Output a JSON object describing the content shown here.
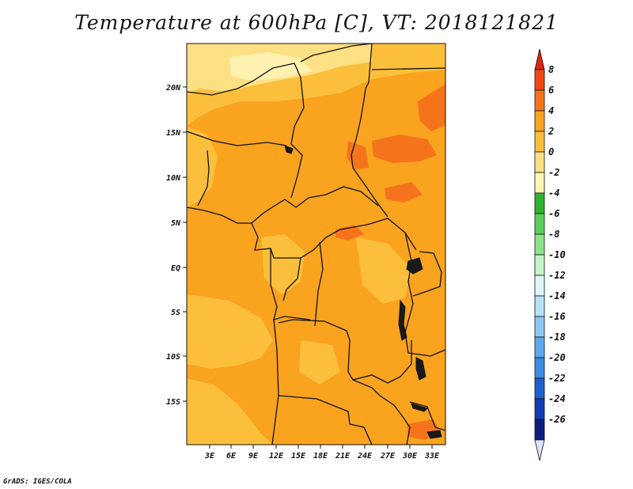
{
  "title": "Temperature at 600hPa [C], VT: 2018121821",
  "footer": "GrADS: IGES/COLA",
  "map": {
    "region": "Central Africa",
    "lat_labels": [
      "20N",
      "15N",
      "10N",
      "5N",
      "EQ",
      "5S",
      "10S",
      "15S"
    ],
    "lon_labels": [
      "3E",
      "6E",
      "9E",
      "12E",
      "15E",
      "18E",
      "21E",
      "24E",
      "27E",
      "30E",
      "33E"
    ],
    "dominant_field": "2 to 4",
    "features": [
      "country borders",
      "coastline",
      "lakes"
    ]
  },
  "colorbar": {
    "labels": [
      "8",
      "6",
      "4",
      "2",
      "0",
      "-2",
      "-4",
      "-6",
      "-8",
      "-10",
      "-12",
      "-14",
      "-16",
      "-18",
      "-20",
      "-22",
      "-24",
      "-26"
    ],
    "colors": [
      "#e02410",
      "#f04a12",
      "#f5741b",
      "#f9a31f",
      "#fbbf3c",
      "#fde083",
      "#fff6b3",
      "#2eb22e",
      "#5ad05a",
      "#8ae38a",
      "#c6f2c6",
      "#dff5fb",
      "#b7e1f7",
      "#8cc8f3",
      "#5ea9ec",
      "#3d8be2",
      "#1f60cf",
      "#103db5",
      "#0a1f80",
      "#e0e0ff"
    ]
  }
}
